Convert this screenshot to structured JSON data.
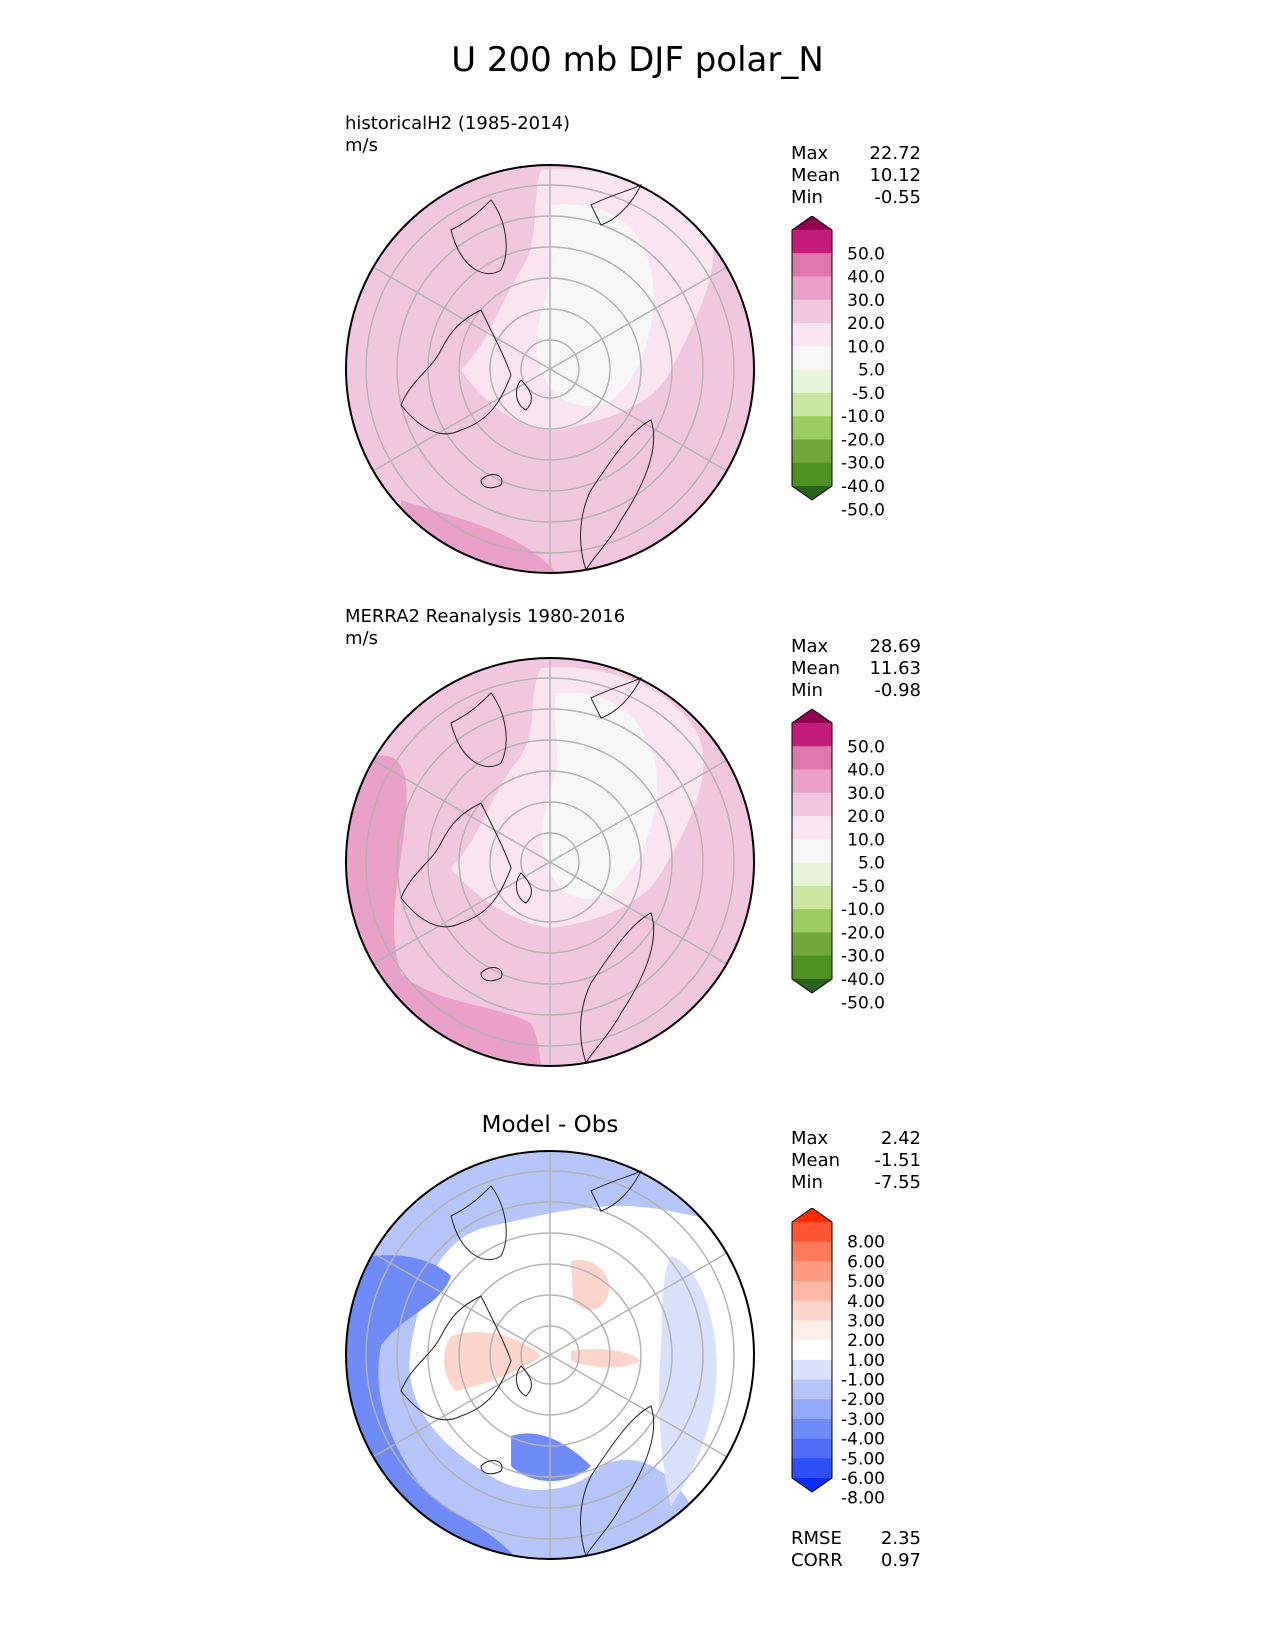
{
  "title": "U 200 mb DJF polar_N",
  "panels": [
    {
      "title": "historicalH2 (1985-2014)",
      "units": "m/s",
      "stats": [
        [
          "Max",
          "22.72"
        ],
        [
          "Mean",
          "10.12"
        ],
        [
          "Min",
          "-0.55"
        ]
      ]
    },
    {
      "title": "MERRA2 Reanalysis 1980-2016",
      "units": "m/s",
      "stats": [
        [
          "Max",
          "28.69"
        ],
        [
          "Mean",
          "11.63"
        ],
        [
          "Min",
          "-0.98"
        ]
      ]
    },
    {
      "title": "Model - Obs",
      "stats": [
        [
          "Max",
          "2.42"
        ],
        [
          "Mean",
          "-1.51"
        ],
        [
          "Min",
          "-7.55"
        ]
      ],
      "metrics": [
        [
          "RMSE",
          "2.35"
        ],
        [
          "CORR",
          "0.97"
        ]
      ]
    }
  ],
  "colorbars": {
    "field": {
      "labels": [
        "50.0",
        "40.0",
        "30.0",
        "20.0",
        "10.0",
        "5.0",
        "-5.0",
        "-10.0",
        "-20.0",
        "-30.0",
        "-40.0",
        "-50.0"
      ],
      "colors": [
        "#8e0152",
        "#c51b7d",
        "#de77ae",
        "#eaa1c9",
        "#f3c6e0",
        "#fbe5f1",
        "#f7f7f7",
        "#e9f5d8",
        "#c9e7a1",
        "#9acd61",
        "#6fa93a",
        "#4d9221",
        "#276419"
      ]
    },
    "diff": {
      "labels": [
        "8.00",
        "6.00",
        "5.00",
        "4.00",
        "3.00",
        "2.00",
        "1.00",
        "-1.00",
        "-2.00",
        "-3.00",
        "-4.00",
        "-5.00",
        "-6.00",
        "-8.00"
      ],
      "colors": [
        "#ff2a00",
        "#ff5533",
        "#ff7a5a",
        "#fe9a80",
        "#fdb8a6",
        "#fdd5ca",
        "#fdeee9",
        "#ffffff",
        "#d9e1fc",
        "#b6c6fb",
        "#93a9f9",
        "#6f8bf7",
        "#4f6ef5",
        "#2e4ff5",
        "#0a2cf6"
      ]
    }
  }
}
